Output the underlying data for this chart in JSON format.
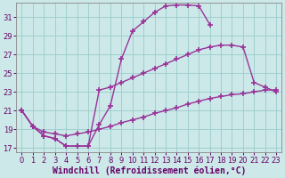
{
  "bg_color": "#cce8e8",
  "grid_color": "#99cccc",
  "line_color": "#993399",
  "marker": "+",
  "marker_size": 4,
  "marker_lw": 1.2,
  "line_width": 1.0,
  "xlabel": "Windchill (Refroidissement éolien,°C)",
  "xlabel_fontsize": 7.0,
  "yticks": [
    17,
    19,
    21,
    23,
    25,
    27,
    29,
    31
  ],
  "xticks": [
    0,
    1,
    2,
    3,
    4,
    5,
    6,
    7,
    8,
    9,
    10,
    11,
    12,
    13,
    14,
    15,
    16,
    17,
    18,
    19,
    20,
    21,
    22,
    23
  ],
  "xlim": [
    -0.5,
    23.5
  ],
  "ylim": [
    16.5,
    32.5
  ],
  "line1_x": [
    0,
    1,
    2,
    3,
    4,
    5,
    6,
    7,
    8,
    9,
    10,
    11,
    12,
    13,
    14,
    15,
    16,
    17
  ],
  "line1_y": [
    21.0,
    19.3,
    18.3,
    18.0,
    17.2,
    17.2,
    17.2,
    19.5,
    21.5,
    26.5,
    29.5,
    30.5,
    31.5,
    32.2,
    32.3,
    32.3,
    32.2,
    30.2
  ],
  "line2_x": [
    0,
    1,
    2,
    3,
    4,
    5,
    6,
    7,
    8,
    9,
    10,
    11,
    12,
    13,
    14,
    15,
    16,
    17,
    18,
    19,
    20,
    21,
    22,
    23
  ],
  "line2_y": [
    21.0,
    19.3,
    18.3,
    18.0,
    17.2,
    17.2,
    17.2,
    23.2,
    23.5,
    24.0,
    24.5,
    25.0,
    25.5,
    26.0,
    26.5,
    27.0,
    27.5,
    27.8,
    28.0,
    28.0,
    27.8,
    24.0,
    23.5,
    23.0
  ],
  "line3_x": [
    0,
    1,
    2,
    3,
    4,
    5,
    6,
    7,
    8,
    9,
    10,
    11,
    12,
    13,
    14,
    15,
    16,
    17,
    18,
    19,
    20,
    21,
    22,
    23
  ],
  "line3_y": [
    21.0,
    19.3,
    18.7,
    18.5,
    18.3,
    18.5,
    18.7,
    19.0,
    19.3,
    19.7,
    20.0,
    20.3,
    20.7,
    21.0,
    21.3,
    21.7,
    22.0,
    22.3,
    22.5,
    22.7,
    22.8,
    23.0,
    23.2,
    23.2
  ],
  "tick_fontsize": 6.0,
  "tick_color": "#660066"
}
